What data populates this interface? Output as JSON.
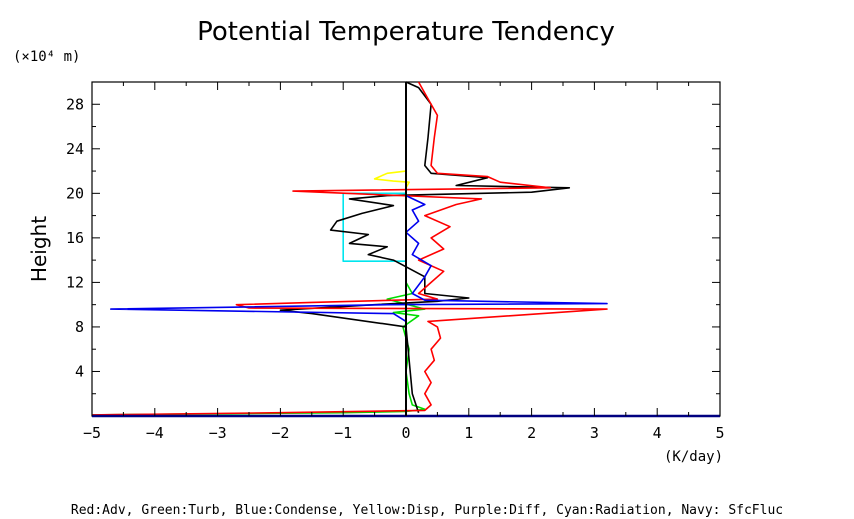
{
  "chart_data": {
    "type": "line",
    "title": "Potential Temperature Tendency",
    "ylabel": "Height",
    "y_unit": "(×10⁴ m)",
    "x_unit": "(K/day)",
    "xlim": [
      -5,
      5
    ],
    "ylim": [
      0,
      30
    ],
    "x_ticks": [
      "−5",
      "−4",
      "−3",
      "−2",
      "−1",
      "0",
      "1",
      "2",
      "3",
      "4",
      "5"
    ],
    "y_ticks": [
      "4",
      "8",
      "12",
      "16",
      "20",
      "24",
      "28"
    ],
    "legend_text": "Red:Adv, Green:Turb, Blue:Condense, Yellow:Disp, Purple:Diff, Cyan:Radiation, Navy: SfcFluc",
    "series": [
      {
        "name": "Cyan:Radiation",
        "color": "#00e5ee",
        "points": [
          [
            0,
            0.2
          ],
          [
            0,
            13.9
          ],
          [
            -1.0,
            13.9
          ],
          [
            -1.0,
            20.0
          ],
          [
            0,
            20.0
          ],
          [
            0,
            30
          ]
        ]
      },
      {
        "name": "Yellow:Disp",
        "color": "#ffff00",
        "points": [
          [
            0,
            0.2
          ],
          [
            0,
            20.5
          ],
          [
            0.05,
            21.0
          ],
          [
            -0.2,
            21.1
          ],
          [
            -0.5,
            21.3
          ],
          [
            -0.3,
            21.8
          ],
          [
            0,
            22.0
          ],
          [
            0,
            30
          ]
        ]
      },
      {
        "name": "Green:Turb",
        "color": "#00dd00",
        "points": [
          [
            -5,
            0.1
          ],
          [
            -3,
            0.2
          ],
          [
            -1,
            0.3
          ],
          [
            0,
            0.4
          ],
          [
            0.3,
            0.6
          ],
          [
            0.1,
            1.0
          ],
          [
            0.05,
            2
          ],
          [
            0,
            4
          ],
          [
            0.05,
            6
          ],
          [
            -0.05,
            8
          ],
          [
            0.2,
            9.0
          ],
          [
            -0.2,
            9.3
          ],
          [
            0.3,
            9.6
          ],
          [
            -0.3,
            10.5
          ],
          [
            0.1,
            11.0
          ],
          [
            0,
            12
          ],
          [
            0,
            30
          ]
        ]
      },
      {
        "name": "Black",
        "color": "#000000",
        "points": [
          [
            0.2,
            0.3
          ],
          [
            0.1,
            2
          ],
          [
            0,
            8
          ],
          [
            -1.5,
            9.2
          ],
          [
            -2.0,
            9.5
          ],
          [
            -0.5,
            10.0
          ],
          [
            0.5,
            10.3
          ],
          [
            1.0,
            10.6
          ],
          [
            0.3,
            11.0
          ],
          [
            0.3,
            12.5
          ],
          [
            -0.2,
            14.0
          ],
          [
            -0.6,
            14.5
          ],
          [
            -0.3,
            15.2
          ],
          [
            -0.9,
            15.5
          ],
          [
            -0.6,
            16.3
          ],
          [
            -1.2,
            16.7
          ],
          [
            -1.1,
            17.5
          ],
          [
            -0.7,
            18.2
          ],
          [
            -0.2,
            18.9
          ],
          [
            -0.9,
            19.5
          ],
          [
            -0.3,
            19.8
          ],
          [
            2.0,
            20.1
          ],
          [
            2.6,
            20.5
          ],
          [
            0.8,
            20.7
          ],
          [
            1.3,
            21.4
          ],
          [
            0.4,
            21.8
          ],
          [
            0.3,
            22.5
          ],
          [
            0.35,
            25
          ],
          [
            0.4,
            28
          ],
          [
            0.2,
            29.5
          ],
          [
            0,
            30
          ]
        ]
      },
      {
        "name": "Red:Adv",
        "color": "#ff0000",
        "points": [
          [
            -5,
            0.1
          ],
          [
            -2,
            0.3
          ],
          [
            0.3,
            0.5
          ],
          [
            0.4,
            1.0
          ],
          [
            0.3,
            2.0
          ],
          [
            0.4,
            3.0
          ],
          [
            0.3,
            4.0
          ],
          [
            0.45,
            5.0
          ],
          [
            0.4,
            6.0
          ],
          [
            0.55,
            7.0
          ],
          [
            0.5,
            8.0
          ],
          [
            0.35,
            8.5
          ],
          [
            3.2,
            9.6
          ],
          [
            -2.5,
            9.7
          ],
          [
            -2.7,
            10.0
          ],
          [
            -1.5,
            10.2
          ],
          [
            0.5,
            10.5
          ],
          [
            0.2,
            11.0
          ],
          [
            0.4,
            12.0
          ],
          [
            0.6,
            13.0
          ],
          [
            0.2,
            14.0
          ],
          [
            0.6,
            15.0
          ],
          [
            0.4,
            16.0
          ],
          [
            0.7,
            17.0
          ],
          [
            0.3,
            18.0
          ],
          [
            0.8,
            19.0
          ],
          [
            1.2,
            19.5
          ],
          [
            -1.8,
            20.2
          ],
          [
            2.3,
            20.5
          ],
          [
            1.5,
            21.0
          ],
          [
            1.3,
            21.5
          ],
          [
            0.5,
            21.8
          ],
          [
            0.4,
            22.5
          ],
          [
            0.45,
            25
          ],
          [
            0.5,
            27
          ],
          [
            0.3,
            29
          ],
          [
            0.2,
            30
          ]
        ]
      },
      {
        "name": "Blue:Condense",
        "color": "#0000ee",
        "points": [
          [
            0,
            0
          ],
          [
            0,
            8.5
          ],
          [
            -0.2,
            9.2
          ],
          [
            -4.7,
            9.6
          ],
          [
            -2.5,
            9.8
          ],
          [
            -0.3,
            10.0
          ],
          [
            3.2,
            10.1
          ],
          [
            0.3,
            10.4
          ],
          [
            0.1,
            11.0
          ],
          [
            0.3,
            12.5
          ],
          [
            0.4,
            13.5
          ],
          [
            0.1,
            14.5
          ],
          [
            0.2,
            15.5
          ],
          [
            0,
            16.5
          ],
          [
            0.2,
            17.5
          ],
          [
            0.1,
            18.5
          ],
          [
            0.3,
            19.0
          ],
          [
            0,
            19.8
          ],
          [
            0,
            30
          ]
        ]
      },
      {
        "name": "Navy: SfcFluc",
        "color": "#000080",
        "points": [
          [
            -5,
            0
          ],
          [
            5,
            0
          ]
        ]
      }
    ]
  }
}
